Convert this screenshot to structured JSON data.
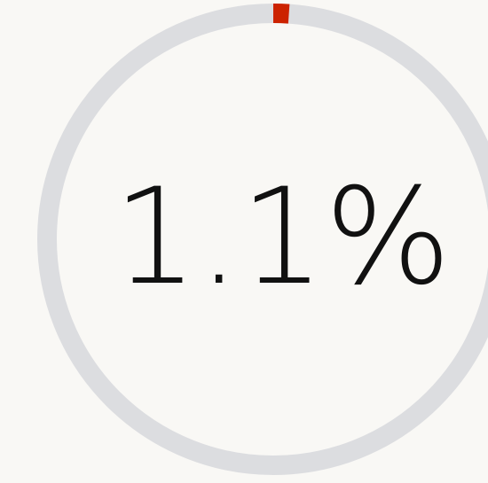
{
  "chart_data": {
    "type": "progress",
    "values": [
      1.1
    ],
    "value_labels": [
      "1.1%"
    ],
    "ylim": [
      0,
      100
    ],
    "track_color": "#dcdde0",
    "color": "#cc2200"
  }
}
